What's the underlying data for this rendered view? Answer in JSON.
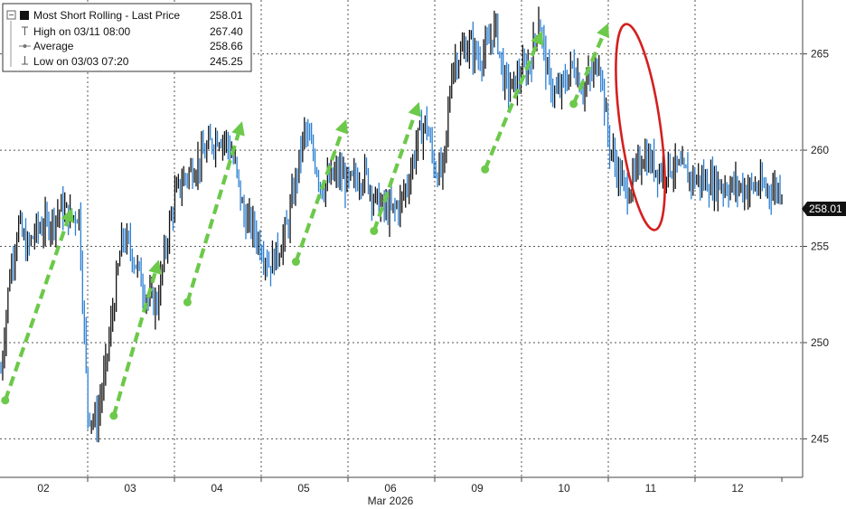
{
  "legend": {
    "title": "Most Short Rolling - Last Price",
    "last_price": "258.01",
    "high_label": "High on 03/11 08:00",
    "high_value": "267.40",
    "average_label": "Average",
    "average_value": "258.66",
    "low_label": "Low on 03/03 07:20",
    "low_value": "245.25"
  },
  "price_tag": "258.01",
  "x_axis_title": "Mar 2026",
  "colors": {
    "up_bar": "#111111",
    "down_bar": "#2a7fd4",
    "arrow": "#6cc94a",
    "ellipse": "#d42020",
    "grid": "#555555",
    "price_tag_bg": "#111111",
    "price_tag_text": "#ffffff"
  },
  "chart_data": {
    "type": "line",
    "title": "Most Short Rolling - Last Price",
    "xlabel": "Mar 2026",
    "ylabel": "",
    "x_categories": [
      "02",
      "03",
      "04",
      "05",
      "06",
      "09",
      "10",
      "11",
      "12"
    ],
    "ylim": [
      243,
      267.8
    ],
    "yticks": [
      245,
      250,
      255,
      260,
      265
    ],
    "grid": true,
    "legend_position": "top-left",
    "last_price": 258.01,
    "high": 267.4,
    "average": 258.66,
    "low": 245.25,
    "series": [
      {
        "name": "Most Short Rolling",
        "x": [
          0.0,
          0.1,
          0.2,
          0.3,
          0.4,
          0.5,
          0.6,
          0.7,
          0.8,
          0.9,
          1.0,
          1.1,
          1.2,
          1.3,
          1.4,
          1.5,
          1.6,
          1.7,
          1.8,
          1.9,
          2.0,
          2.1,
          2.2,
          2.3,
          2.4,
          2.5,
          2.6,
          2.7,
          2.8,
          2.9,
          3.0,
          3.1,
          3.2,
          3.3,
          3.4,
          3.5,
          3.6,
          3.7,
          3.8,
          3.9,
          4.0,
          4.1,
          4.2,
          4.3,
          4.4,
          4.5,
          4.6,
          4.7,
          4.8,
          4.9,
          5.0,
          5.1,
          5.2,
          5.3,
          5.4,
          5.5,
          5.6,
          5.7,
          5.8,
          5.9,
          6.0,
          6.1,
          6.2,
          6.3,
          6.4,
          6.5,
          6.6,
          6.7,
          6.8,
          6.9,
          7.0,
          7.1,
          7.2,
          7.3,
          7.4,
          7.5,
          7.6,
          7.7,
          7.8,
          7.9,
          8.0,
          8.1,
          8.2,
          8.3,
          8.4,
          8.5,
          8.6,
          8.7,
          8.8,
          8.9,
          9.0
        ],
        "values": [
          248.5,
          253.5,
          256.2,
          254.8,
          255.8,
          256.1,
          256.4,
          257.0,
          256.5,
          256.7,
          246.5,
          245.8,
          248.5,
          252.0,
          255.5,
          254.8,
          253.5,
          252.2,
          252.0,
          255.0,
          257.5,
          258.5,
          259.0,
          259.5,
          260.2,
          260.8,
          260.5,
          259.2,
          256.5,
          256.0,
          255.0,
          254.0,
          254.8,
          256.0,
          258.5,
          261.0,
          259.8,
          258.0,
          258.5,
          258.8,
          258.2,
          258.5,
          258.8,
          257.5,
          257.0,
          256.8,
          257.2,
          258.5,
          260.5,
          261.5,
          259.0,
          258.8,
          264.5,
          265.0,
          265.5,
          264.8,
          265.2,
          266.5,
          263.5,
          263.2,
          264.0,
          264.5,
          267.0,
          263.8,
          262.8,
          263.5,
          264.5,
          263.2,
          263.8,
          264.8,
          260.5,
          259.0,
          257.8,
          258.5,
          259.8,
          259.3,
          258.9,
          259.2,
          259.0,
          258.7,
          258.5,
          258.4,
          258.3,
          258.2,
          258.1,
          258.1,
          258.0,
          258.1,
          258.0,
          258.0,
          258.01
        ]
      }
    ],
    "annotations": [
      {
        "type": "arrow",
        "from": [
          0.05,
          247.0
        ],
        "to": [
          0.82,
          257.0
        ]
      },
      {
        "type": "arrow",
        "from": [
          1.3,
          246.2
        ],
        "to": [
          1.82,
          254.3
        ]
      },
      {
        "type": "arrow",
        "from": [
          2.15,
          252.1
        ],
        "to": [
          2.78,
          261.5
        ]
      },
      {
        "type": "arrow",
        "from": [
          3.4,
          254.2
        ],
        "to": [
          3.98,
          261.6
        ]
      },
      {
        "type": "arrow",
        "from": [
          4.3,
          255.8
        ],
        "to": [
          4.82,
          262.5
        ]
      },
      {
        "type": "arrow",
        "from": [
          5.58,
          259.0
        ],
        "to": [
          6.24,
          266.2
        ]
      },
      {
        "type": "arrow",
        "from": [
          6.6,
          262.4
        ],
        "to": [
          7.0,
          266.6
        ]
      },
      {
        "type": "ellipse",
        "center": [
          7.37,
          261.2
        ],
        "rx_days": 0.23,
        "ry_units": 5.4
      }
    ]
  }
}
